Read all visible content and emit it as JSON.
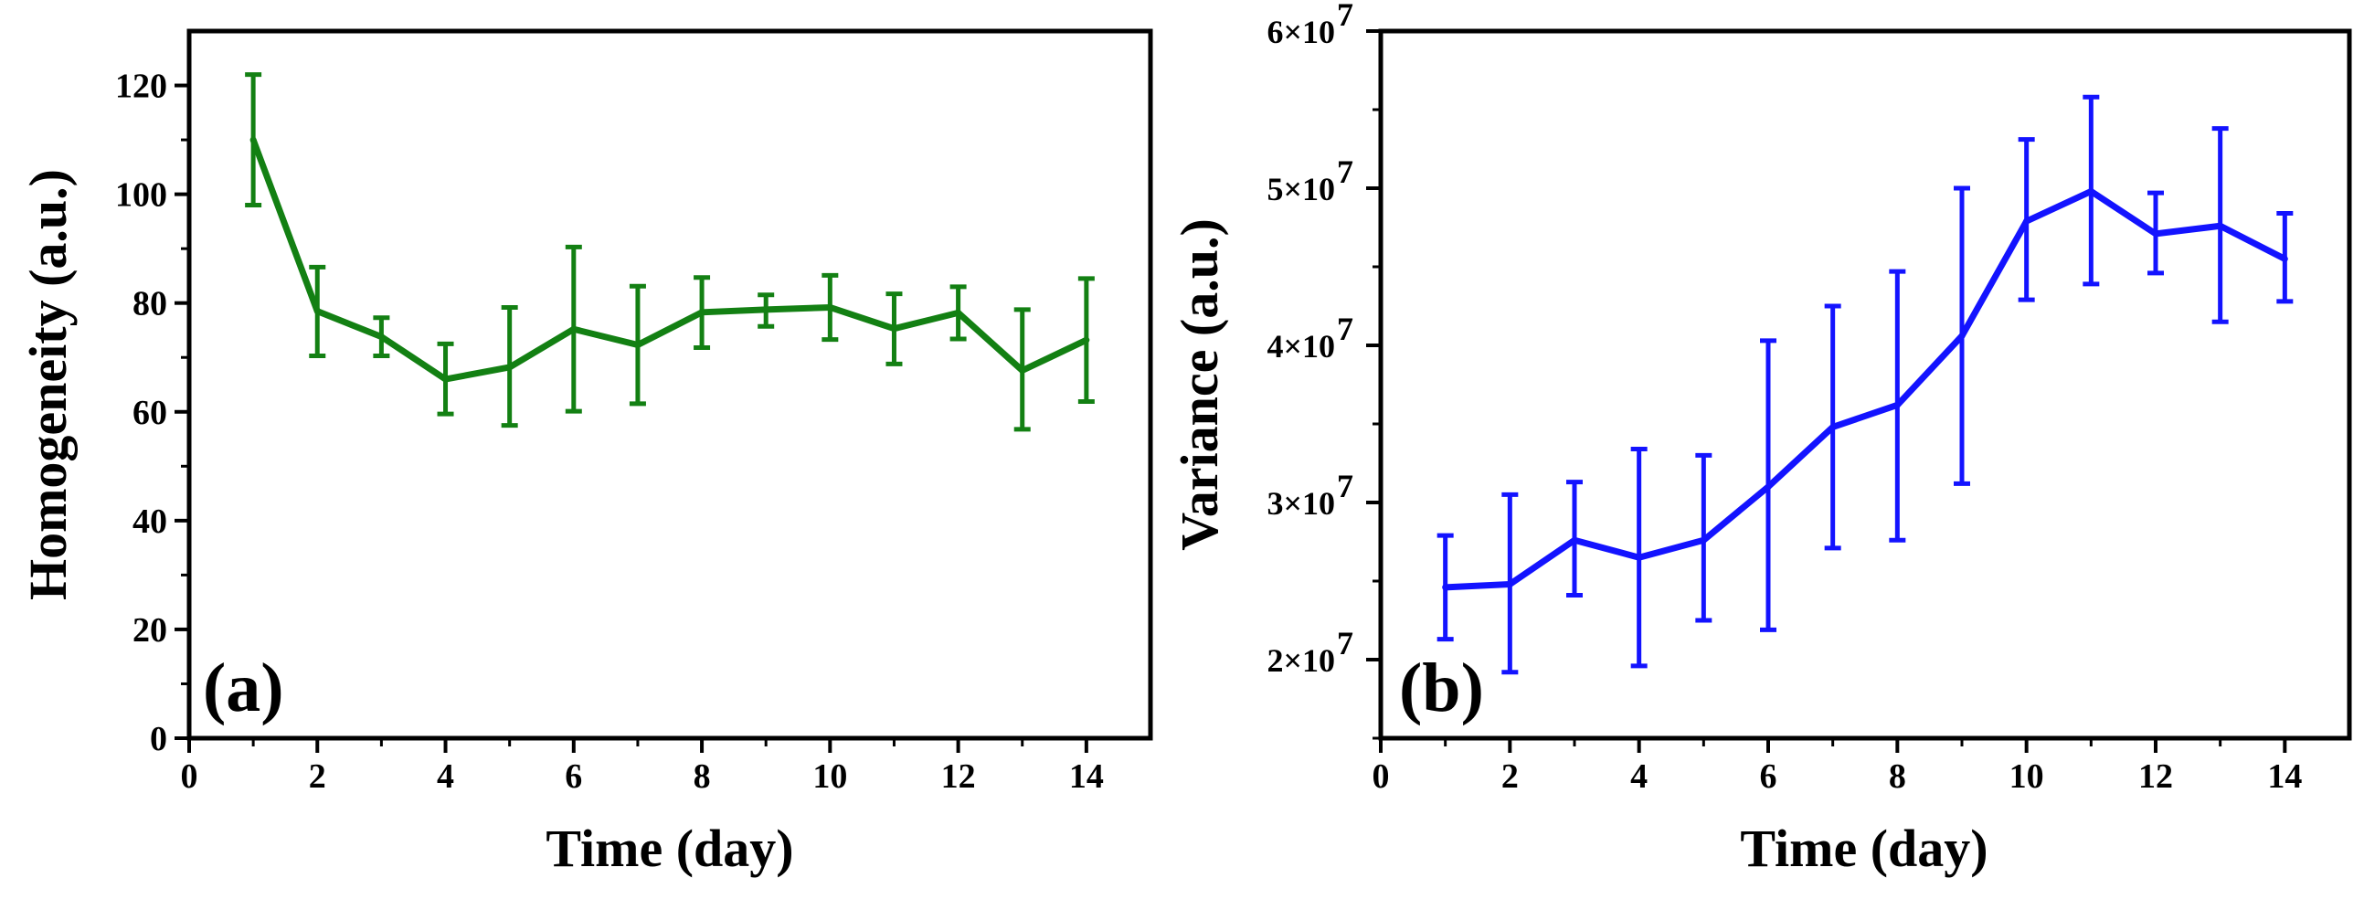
{
  "chart_data": [
    {
      "type": "line",
      "panel_label": "(a)",
      "title": "",
      "xlabel": "Time (day)",
      "ylabel": "Homogeneity (a.u.)",
      "xlim": [
        0,
        15
      ],
      "ylim": [
        0,
        130
      ],
      "xticks": [
        0,
        2,
        4,
        6,
        8,
        10,
        12,
        14
      ],
      "xtick_labels": [
        "0",
        "2",
        "4",
        "6",
        "8",
        "10",
        "12",
        "14"
      ],
      "yticks": [
        0,
        20,
        40,
        60,
        80,
        100,
        120
      ],
      "ytick_labels": [
        "0",
        "20",
        "40",
        "60",
        "80",
        "100",
        "120"
      ],
      "color": "#138013",
      "grid": false,
      "series": [
        {
          "name": "Homogeneity",
          "x": [
            1,
            2,
            3,
            4,
            5,
            6,
            7,
            8,
            9,
            10,
            11,
            12,
            13,
            14
          ],
          "y": [
            110,
            78.5,
            73.8,
            66,
            68.2,
            75.2,
            72.3,
            78.3,
            78.8,
            79.2,
            75.3,
            78.2,
            67.6,
            73.2
          ],
          "err_low": [
            98,
            70.3,
            70.3,
            59.6,
            57.5,
            60.1,
            61.5,
            71.8,
            75.7,
            73.3,
            68.8,
            73.4,
            56.8,
            61.9
          ],
          "err_high": [
            122,
            86.6,
            77.3,
            72.5,
            79.2,
            90.3,
            83.1,
            84.7,
            81.5,
            85.1,
            81.7,
            83.0,
            78.8,
            84.5
          ]
        }
      ]
    },
    {
      "type": "line",
      "panel_label": "(b)",
      "title": "",
      "xlabel": "Time (day)",
      "ylabel": "Variance (a.u.)",
      "xlim": [
        0,
        15
      ],
      "ylim": [
        15000000,
        60000000
      ],
      "xticks": [
        0,
        2,
        4,
        6,
        8,
        10,
        12,
        14
      ],
      "xtick_labels": [
        "0",
        "2",
        "4",
        "6",
        "8",
        "10",
        "12",
        "14"
      ],
      "yticks": [
        20000000,
        30000000,
        40000000,
        50000000,
        60000000
      ],
      "ytick_mantissas": [
        "2×10",
        "3×10",
        "4×10",
        "5×10",
        "6×10"
      ],
      "ytick_exponent": "7",
      "color": "#1313ff",
      "grid": false,
      "series": [
        {
          "name": "Variance",
          "x": [
            1,
            2,
            3,
            4,
            5,
            6,
            7,
            8,
            9,
            10,
            11,
            12,
            13,
            14
          ],
          "y": [
            24600000,
            24800000,
            27600000,
            26500000,
            27600000,
            31000000,
            34800000,
            36200000,
            40600000,
            47900000,
            49800000,
            47100000,
            47600000,
            45500000
          ],
          "err_low": [
            21300000,
            19200000,
            24100000,
            19600000,
            22500000,
            21900000,
            27100000,
            27600000,
            31200000,
            42900000,
            43900000,
            44600000,
            41500000,
            42800000
          ],
          "err_high": [
            27900000,
            30500000,
            31300000,
            33400000,
            33000000,
            40300000,
            42500000,
            44700000,
            50000000,
            53100000,
            55800000,
            49700000,
            53800000,
            48400000
          ]
        }
      ]
    }
  ]
}
